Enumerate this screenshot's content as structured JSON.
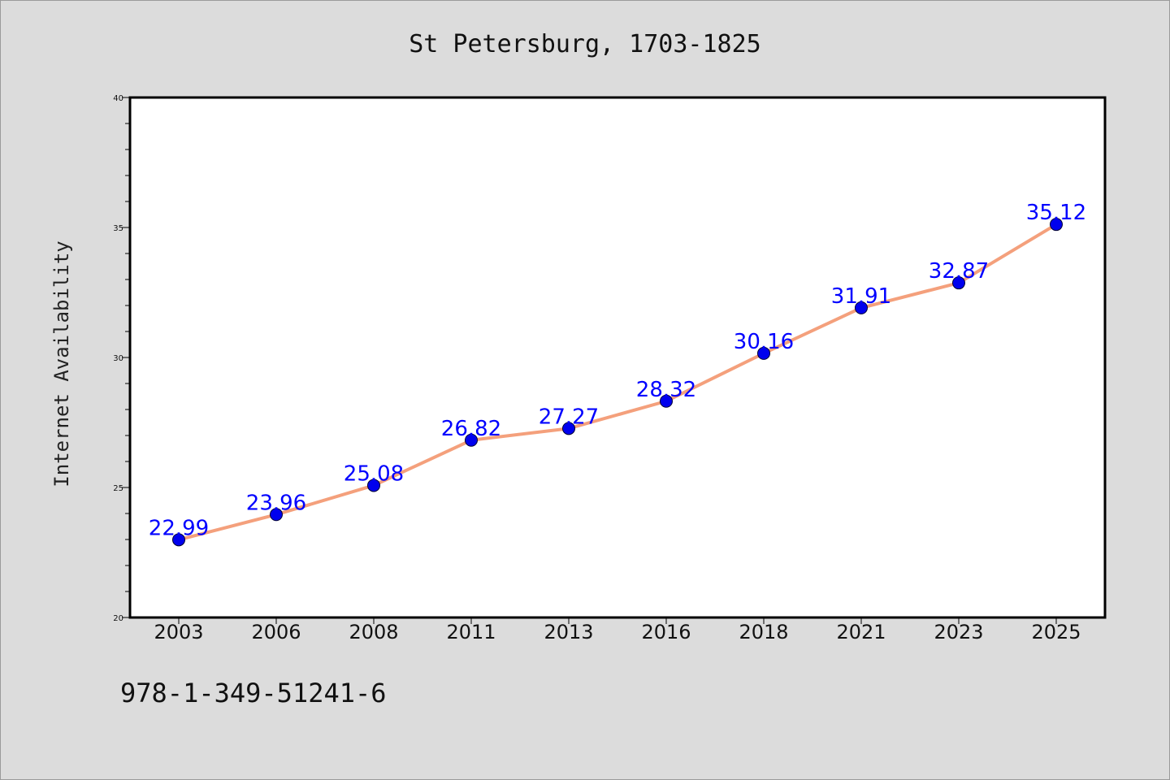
{
  "chart_data": {
    "type": "line",
    "title": "St Petersburg, 1703-1825",
    "xlabel": "",
    "ylabel": "Internet Availability",
    "categories": [
      "2003",
      "2006",
      "2008",
      "2011",
      "2013",
      "2016",
      "2018",
      "2021",
      "2023",
      "2025"
    ],
    "series": [
      {
        "values": [
          22.99,
          23.96,
          25.08,
          26.82,
          27.27,
          28.32,
          30.16,
          31.91,
          32.87,
          35.12
        ],
        "labels": [
          "22.99",
          "23.96",
          "25.08",
          "26.82",
          "27.27",
          "28.32",
          "30.16",
          "31.91",
          "32.87",
          "35.12"
        ]
      }
    ],
    "ylim": [
      20,
      40
    ],
    "yticks": [
      "20",
      "25",
      "30",
      "35",
      "40"
    ],
    "grid": false,
    "legend": "none",
    "colors": {
      "line": "#f4a07c",
      "marker": "#0000ee",
      "data_label": "#0000ff",
      "background": "#dcdcdc",
      "plot_background": "#ffffff"
    }
  },
  "footer": {
    "isbn": "978-1-349-51241-6"
  }
}
